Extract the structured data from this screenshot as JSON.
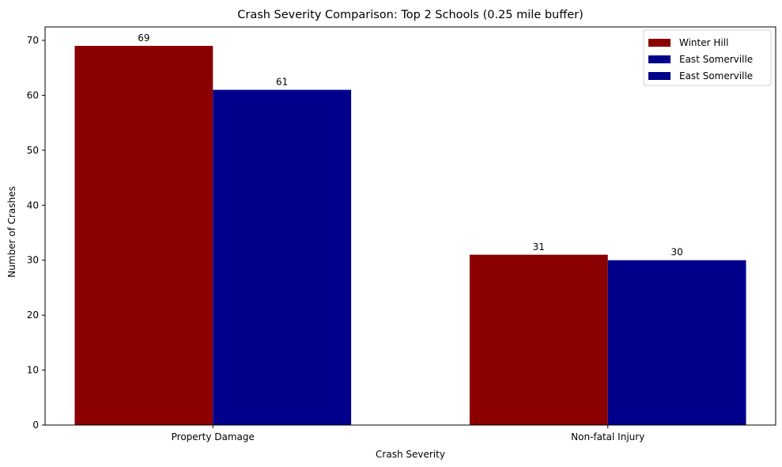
{
  "chart_data": {
    "type": "bar",
    "title": "Crash Severity Comparison: Top 2 Schools (0.25 mile buffer)",
    "xlabel": "Crash Severity",
    "ylabel": "Number of Crashes",
    "categories": [
      "Property Damage",
      "Non-fatal Injury"
    ],
    "series": [
      {
        "name": "Winter Hill",
        "values": [
          69,
          31
        ],
        "color": "#8b0000"
      },
      {
        "name": "East Somerville",
        "values": [
          61,
          30
        ],
        "color": "#00008b"
      }
    ],
    "legend": [
      {
        "name": "Winter Hill",
        "color": "#8b0000"
      },
      {
        "name": "East Somerville",
        "color": "#00008b"
      },
      {
        "name": "East Somerville",
        "color": "#00008b"
      }
    ],
    "legend_position": "top-right",
    "ylim": [
      0,
      72.45
    ],
    "yticks": [
      0,
      10,
      20,
      30,
      40,
      50,
      60,
      70
    ],
    "grid": false
  }
}
